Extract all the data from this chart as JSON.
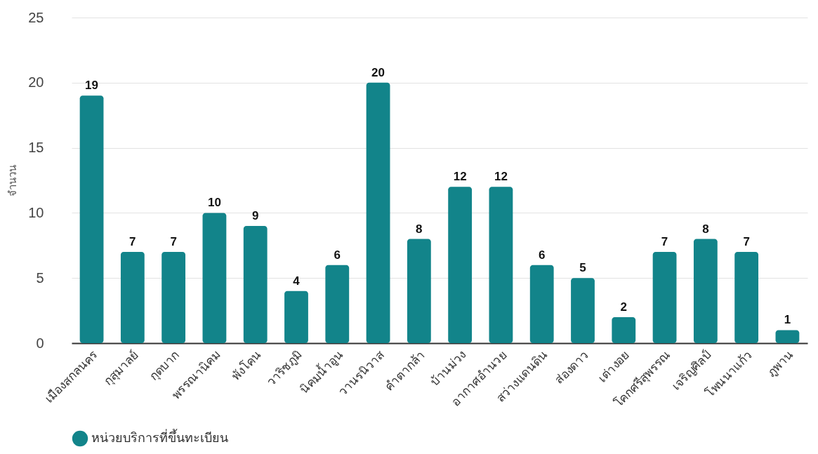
{
  "chart_data": {
    "type": "bar",
    "ylabel": "จำนวน",
    "categories": [
      "เมืองสกลนคร",
      "กุสุมาลย์",
      "กุดบาก",
      "พรรณานิคม",
      "พังโคน",
      "วาริชภูมิ",
      "นิคมน้ำอูน",
      "วานรนิวาส",
      "คำตากล้า",
      "บ้านม่วง",
      "อากาศอำนวย",
      "สว่างแดนดิน",
      "ส่องดาว",
      "เต่างอย",
      "โคกศรีสุพรรณ",
      "เจริญศิลป์",
      "โพนนาแก้ว",
      "ภูพาน"
    ],
    "series": [
      {
        "name": "หน่วยบริการที่ขึ้นทะเบียน",
        "color": "#12848a",
        "values": [
          19,
          7,
          7,
          10,
          9,
          4,
          6,
          20,
          8,
          12,
          12,
          6,
          5,
          2,
          7,
          8,
          7,
          1
        ]
      }
    ],
    "ylim": [
      0,
      25
    ],
    "yticks": [
      0,
      5,
      10,
      15,
      20,
      25
    ],
    "grid": "y",
    "legend": "bottom",
    "data_labels": true
  }
}
